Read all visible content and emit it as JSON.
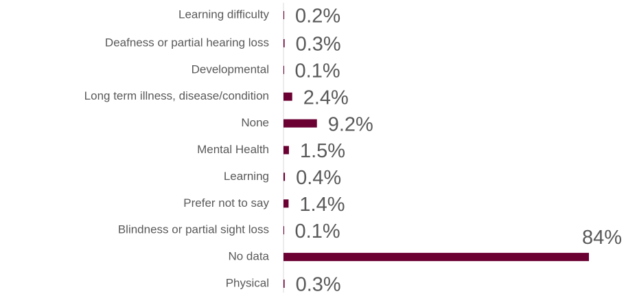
{
  "chart_data": {
    "type": "bar",
    "orientation": "horizontal",
    "categories": [
      "Learning difficulty",
      "Deafness or partial hearing loss",
      "Developmental",
      "Long term illness, disease/condition",
      "None",
      "Mental Health",
      "Learning",
      "Prefer not to say",
      "Blindness or partial sight loss",
      "No data",
      "Physical"
    ],
    "values": [
      0.2,
      0.3,
      0.1,
      2.4,
      9.2,
      1.5,
      0.4,
      1.4,
      0.1,
      84,
      0.3
    ],
    "value_labels": [
      "0.2%",
      "0.3%",
      "0.1%",
      "2.4%",
      "9.2%",
      "1.5%",
      "0.4%",
      "1.4%",
      "0.1%",
      "84%",
      "0.3%"
    ],
    "color": "#6b0033",
    "xlim": [
      0,
      84
    ]
  }
}
